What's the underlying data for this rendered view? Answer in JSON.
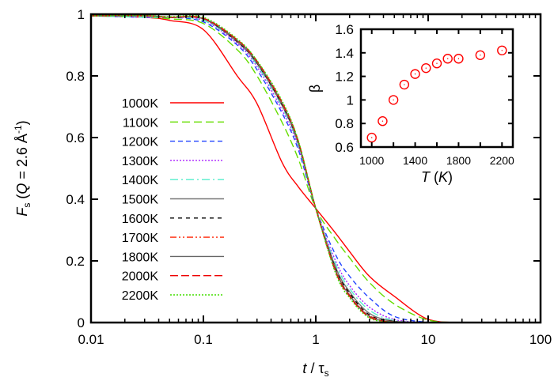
{
  "chart_data": [
    {
      "type": "line",
      "xlabel": {
        "var": "t",
        "sep": " / ",
        "tau": "τ",
        "sub": "s"
      },
      "ylabel": {
        "var": "F",
        "sub": "s",
        "open": " (",
        "q": "Q",
        "eq": " = 2.6 ",
        "unit": "Å",
        "sup": "-1",
        "close": ")"
      },
      "xscale": "log",
      "xlim": [
        0.01,
        100
      ],
      "ylim": [
        0,
        1
      ],
      "xticks": [
        "0.01",
        "0.1",
        "1",
        "10",
        "100"
      ],
      "yticks": [
        "0",
        "0.2",
        "0.4",
        "0.6",
        "0.8",
        "1"
      ],
      "grid": false,
      "legend_position": "left",
      "x": [
        0.01,
        0.03,
        0.05,
        0.1,
        0.2,
        0.3,
        0.5,
        0.7,
        1,
        1.5,
        2,
        3,
        5,
        10,
        20,
        100
      ],
      "series": [
        {
          "name": "1000K",
          "color": "#ff0000",
          "dash": "",
          "values": [
            0.995,
            0.99,
            0.98,
            0.95,
            0.8,
            0.71,
            0.52,
            0.44,
            0.37,
            0.29,
            0.23,
            0.15,
            0.085,
            0.01,
            0.0,
            0.0
          ]
        },
        {
          "name": "1100K",
          "color": "#66dd00",
          "dash": "10,5",
          "values": [
            0.995,
            0.99,
            0.985,
            0.97,
            0.885,
            0.8,
            0.65,
            0.53,
            0.37,
            0.27,
            0.21,
            0.13,
            0.06,
            0.008,
            0.0,
            0.0
          ]
        },
        {
          "name": "1200K",
          "color": "#2244ff",
          "dash": "6,4",
          "values": [
            0.995,
            0.99,
            0.99,
            0.975,
            0.9,
            0.82,
            0.68,
            0.56,
            0.37,
            0.22,
            0.15,
            0.08,
            0.02,
            0.001,
            0.0,
            0.0
          ]
        },
        {
          "name": "1300K",
          "color": "#aa22ff",
          "dash": "2,2",
          "values": [
            0.995,
            0.99,
            0.99,
            0.98,
            0.905,
            0.83,
            0.69,
            0.57,
            0.37,
            0.2,
            0.12,
            0.05,
            0.01,
            0.0,
            0.0,
            0.0
          ]
        },
        {
          "name": "1400K",
          "color": "#55eecc",
          "dash": "10,4,2,4",
          "values": [
            0.995,
            0.99,
            0.99,
            0.98,
            0.91,
            0.835,
            0.7,
            0.575,
            0.37,
            0.19,
            0.11,
            0.04,
            0.006,
            0.0,
            0.0,
            0.0
          ]
        },
        {
          "name": "1500K",
          "color": "#777777",
          "dash": "",
          "values": [
            0.995,
            0.995,
            0.99,
            0.985,
            0.91,
            0.84,
            0.705,
            0.58,
            0.37,
            0.18,
            0.1,
            0.03,
            0.004,
            0.0,
            0.0,
            0.0
          ]
        },
        {
          "name": "1600K",
          "color": "#000000",
          "dash": "5,5",
          "values": [
            0.995,
            0.995,
            0.99,
            0.985,
            0.912,
            0.842,
            0.708,
            0.582,
            0.37,
            0.175,
            0.095,
            0.025,
            0.003,
            0.0,
            0.0,
            0.0
          ]
        },
        {
          "name": "1700K",
          "color": "#ff2200",
          "dash": "8,3,2,3,2,3",
          "values": [
            0.995,
            0.995,
            0.99,
            0.985,
            0.914,
            0.844,
            0.71,
            0.584,
            0.37,
            0.172,
            0.09,
            0.022,
            0.002,
            0.0,
            0.0,
            0.0
          ]
        },
        {
          "name": "1800K",
          "color": "#666666",
          "dash": "",
          "values": [
            0.995,
            0.995,
            0.99,
            0.986,
            0.915,
            0.845,
            0.712,
            0.585,
            0.37,
            0.17,
            0.088,
            0.02,
            0.002,
            0.0,
            0.0,
            0.0
          ]
        },
        {
          "name": "2000K",
          "color": "#ee0000",
          "dash": "10,4",
          "values": [
            0.995,
            0.995,
            0.99,
            0.987,
            0.917,
            0.848,
            0.715,
            0.588,
            0.37,
            0.165,
            0.085,
            0.018,
            0.001,
            0.0,
            0.0,
            0.0
          ]
        },
        {
          "name": "2200K",
          "color": "#44dd00",
          "dash": "2,2",
          "values": [
            0.995,
            0.995,
            0.992,
            0.99,
            0.92,
            0.85,
            0.72,
            0.59,
            0.37,
            0.16,
            0.08,
            0.015,
            0.001,
            0.0,
            0.0,
            0.0
          ]
        }
      ]
    },
    {
      "type": "scatter",
      "xlabel": {
        "var": "T",
        "open": " (",
        "unit": "K",
        "close": ")"
      },
      "ylabel": "β",
      "xlim": [
        900,
        2300
      ],
      "ylim": [
        0.6,
        1.6
      ],
      "xticks": [
        "1000",
        "1400",
        "1800",
        "2200"
      ],
      "yticks": [
        "0.6",
        "0.8",
        "1",
        "1.2",
        "1.4",
        "1.6"
      ],
      "color": "#ff0000",
      "marker": "open-circle",
      "x": [
        1000,
        1100,
        1200,
        1300,
        1400,
        1500,
        1600,
        1700,
        1800,
        2000,
        2200
      ],
      "y": [
        0.68,
        0.82,
        1.0,
        1.13,
        1.22,
        1.27,
        1.31,
        1.35,
        1.35,
        1.38,
        1.42
      ]
    }
  ]
}
